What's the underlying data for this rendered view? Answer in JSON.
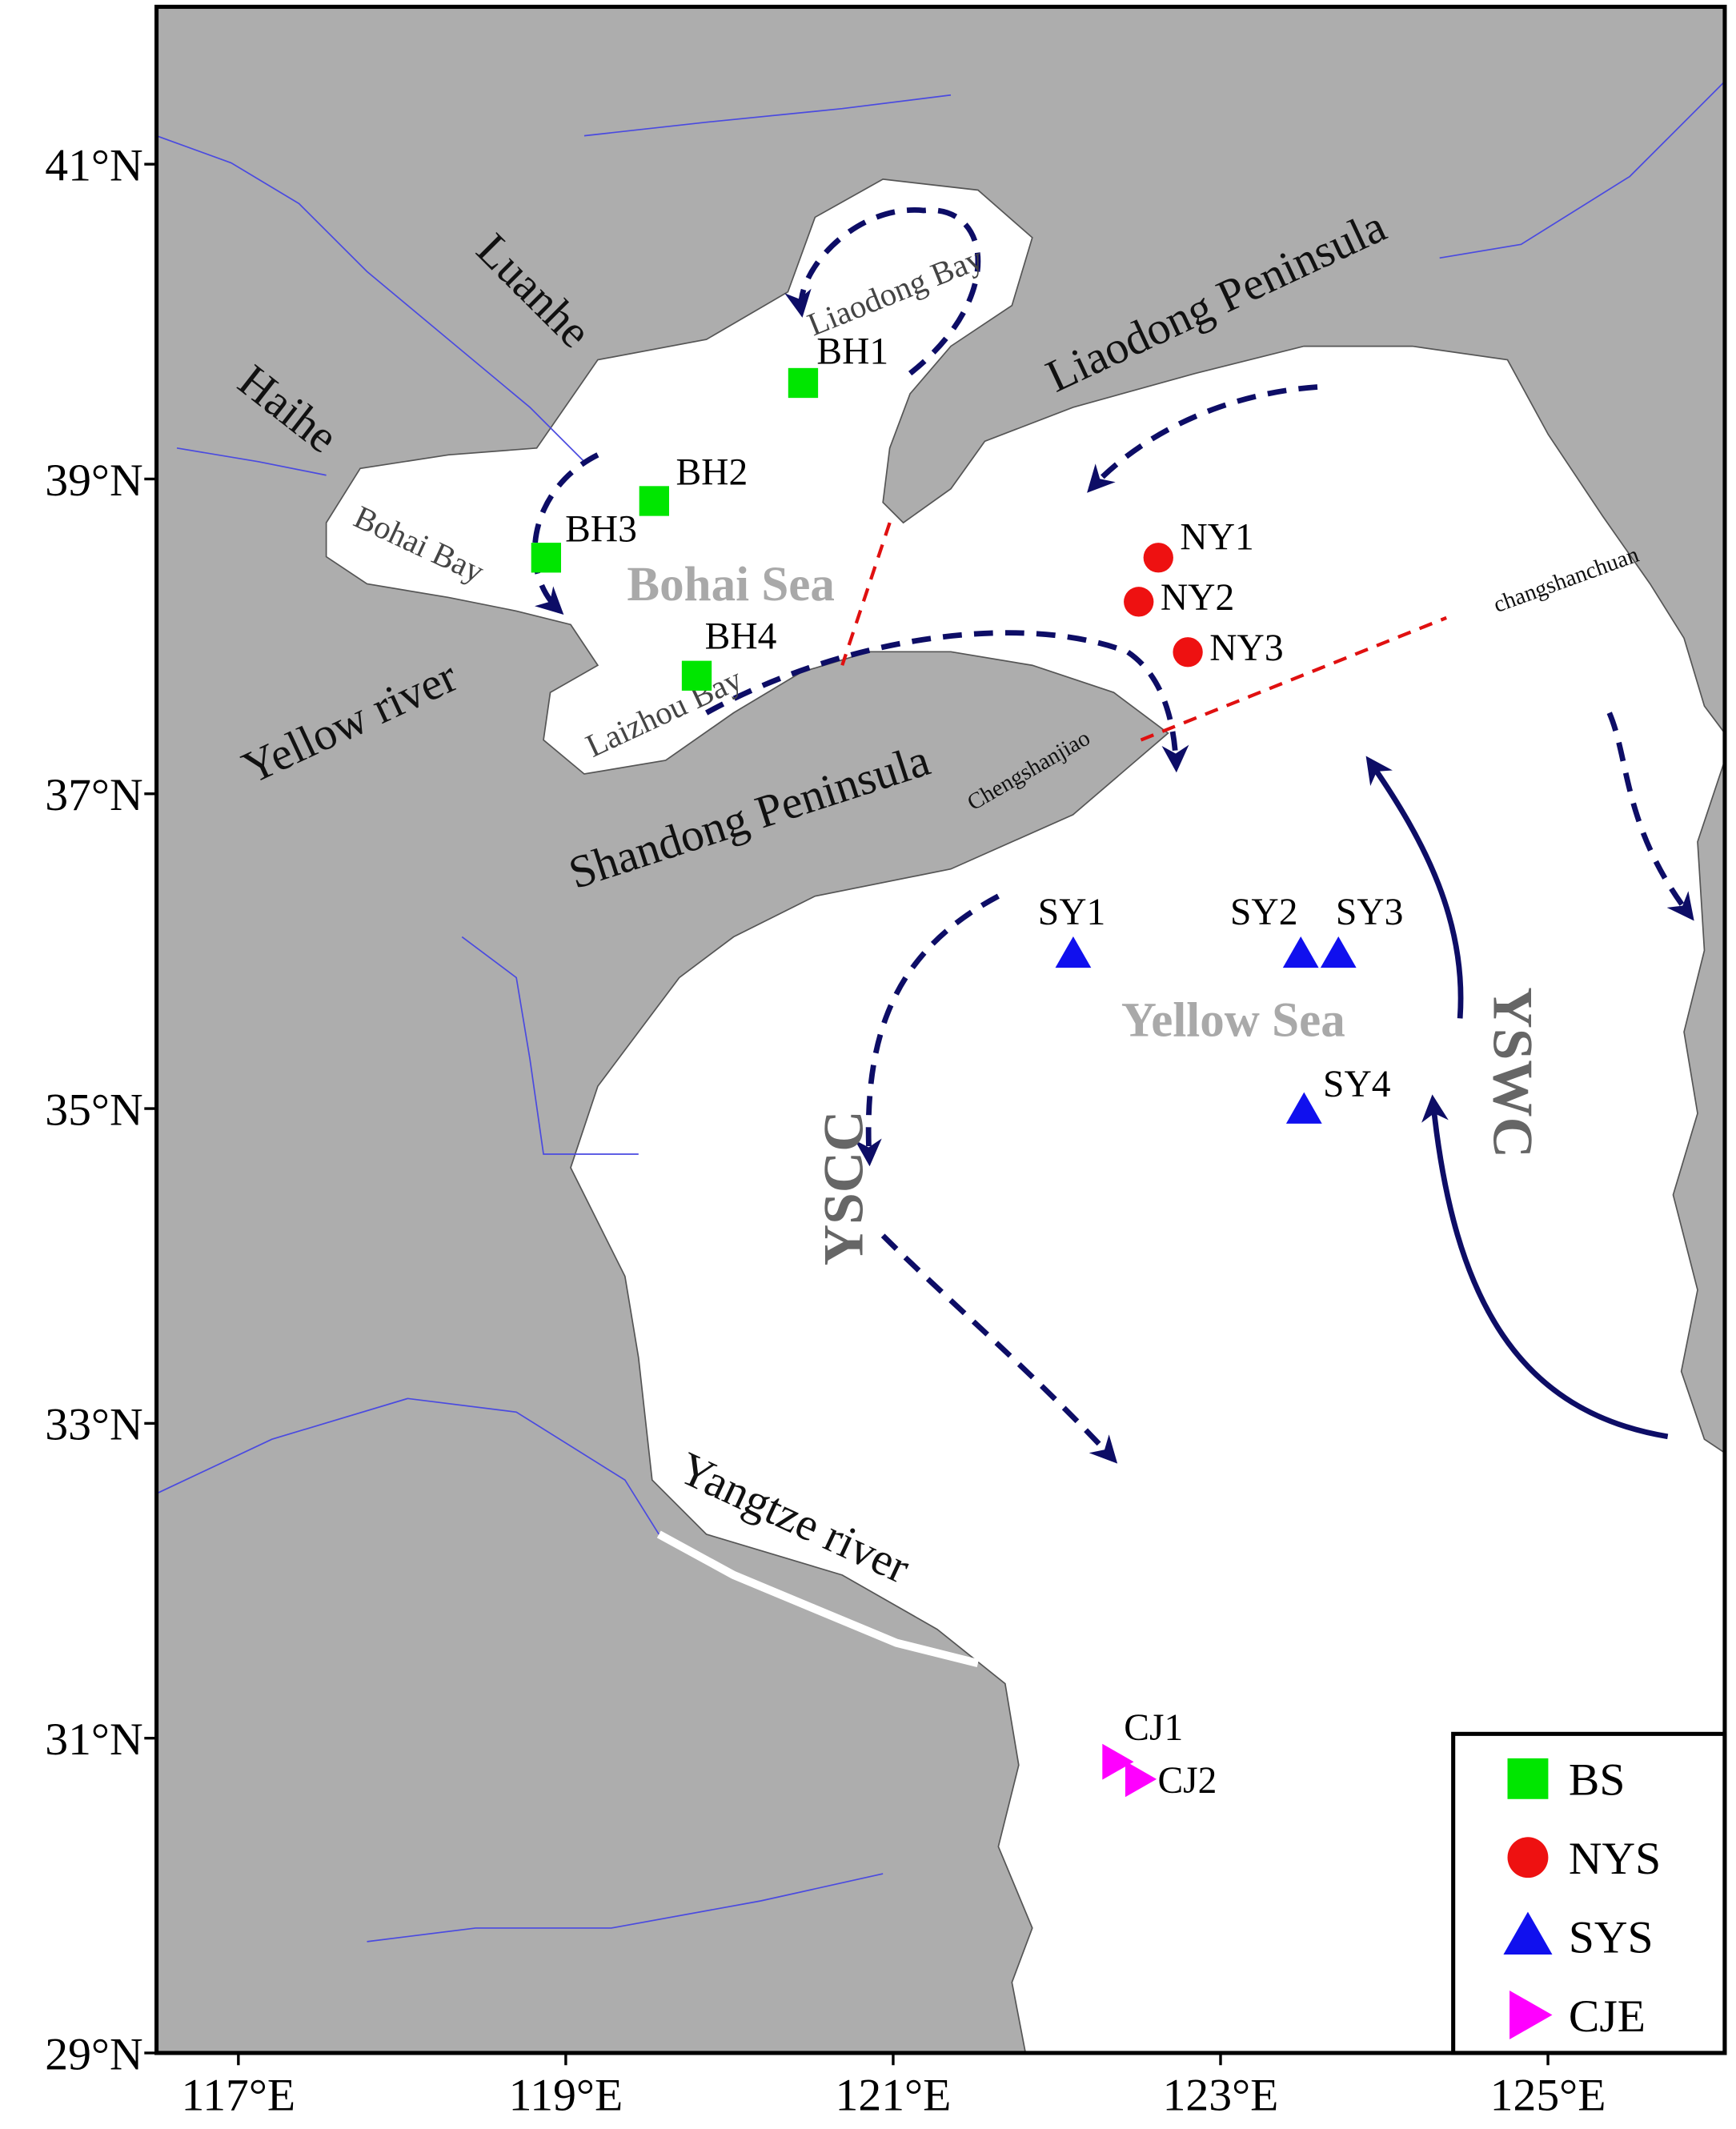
{
  "map": {
    "xlim": [
      116.5,
      126.08
    ],
    "ylim": [
      29,
      42
    ],
    "xticks": [
      {
        "value": 117,
        "label": "117°E"
      },
      {
        "value": 119,
        "label": "119°E"
      },
      {
        "value": 121,
        "label": "121°E"
      },
      {
        "value": 123,
        "label": "123°E"
      },
      {
        "value": 125,
        "label": "125°E"
      }
    ],
    "yticks": [
      {
        "value": 29,
        "label": "29°N"
      },
      {
        "value": 31,
        "label": "31°N"
      },
      {
        "value": 33,
        "label": "33°N"
      },
      {
        "value": 35,
        "label": "35°N"
      },
      {
        "value": 37,
        "label": "37°N"
      },
      {
        "value": 39,
        "label": "39°N"
      },
      {
        "value": 41,
        "label": "41°N"
      }
    ],
    "places": {
      "luanhe": "Luanhe",
      "haihe": "Haihe",
      "bohai_bay": "Bohai Bay",
      "liaodong_bay": "Liaodong Bay",
      "liaodong_peninsula": "Liaodong Peninsula",
      "bohai_sea": "Bohai Sea",
      "yellow_river": "Yellow river",
      "laizhou_bay": "Laizhou Bay",
      "shandong_peninsula": "Shandong Peninsula",
      "chengshanjiao": "Chengshanjiao",
      "changshanchuan": "changshanchuan",
      "yellow_sea": "Yellow Sea",
      "yscc": "YSCC",
      "yswc": "YSWC",
      "yangtze_river": "Yangtze river"
    },
    "groups": [
      {
        "name": "BS",
        "color": "#00e600",
        "shape": "square",
        "stations": [
          {
            "name": "BH1",
            "lon": 120.45,
            "lat": 39.61
          },
          {
            "name": "BH2",
            "lon": 119.54,
            "lat": 38.86
          },
          {
            "name": "BH3",
            "lon": 118.88,
            "lat": 38.5
          },
          {
            "name": "BH4",
            "lon": 119.8,
            "lat": 37.75
          }
        ]
      },
      {
        "name": "NYS",
        "color": "#ee1111",
        "shape": "circle",
        "stations": [
          {
            "name": "NY1",
            "lon": 122.62,
            "lat": 38.5
          },
          {
            "name": "NY2",
            "lon": 122.5,
            "lat": 38.22
          },
          {
            "name": "NY3",
            "lon": 122.8,
            "lat": 37.9
          }
        ]
      },
      {
        "name": "SYS",
        "color": "#1010ee",
        "shape": "triangle-up",
        "stations": [
          {
            "name": "SY1",
            "lon": 122.1,
            "lat": 35.98
          },
          {
            "name": "SY2",
            "lon": 123.49,
            "lat": 35.98
          },
          {
            "name": "SY3",
            "lon": 123.72,
            "lat": 35.98
          },
          {
            "name": "SY4",
            "lon": 123.51,
            "lat": 34.99
          }
        ]
      },
      {
        "name": "CJE",
        "color": "#ff00ff",
        "shape": "triangle-right",
        "stations": [
          {
            "name": "CJ1",
            "lon": 122.36,
            "lat": 30.85
          },
          {
            "name": "CJ2",
            "lon": 122.5,
            "lat": 30.74
          }
        ]
      }
    ]
  }
}
